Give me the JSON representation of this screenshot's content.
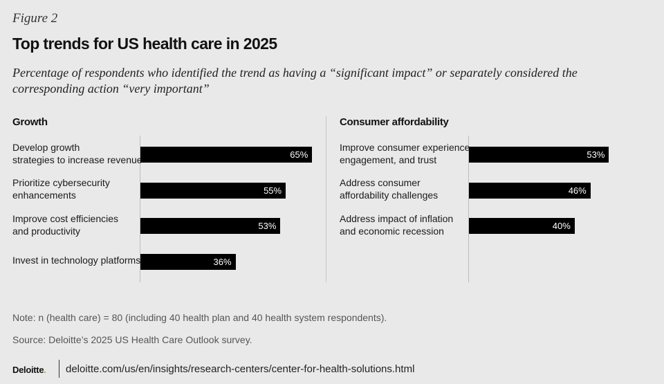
{
  "figure_label": "Figure 2",
  "title": "Top trends for US health care in 2025",
  "subtitle": "Percentage of respondents who identified the trend as having a “significant impact” or separately considered the corresponding action “very important”",
  "chart_data": [
    {
      "type": "bar",
      "orientation": "horizontal",
      "title": "Growth",
      "categories": [
        "Develop growth\nstrategies to increase revenue",
        "Prioritize cybersecurity\nenhancements",
        "Improve cost efficiencies\nand productivity",
        "Invest in technology platforms"
      ],
      "values": [
        65,
        55,
        53,
        36
      ],
      "value_labels": [
        "65%",
        "55%",
        "53%",
        "36%"
      ],
      "xlim": [
        0,
        100
      ],
      "bar_color": "#000000"
    },
    {
      "type": "bar",
      "orientation": "horizontal",
      "title": "Consumer affordability",
      "categories": [
        "Improve consumer experience,\nengagement, and trust",
        "Address consumer\naffordability challenges",
        "Address impact of inflation\nand economic recession"
      ],
      "values": [
        53,
        46,
        40
      ],
      "value_labels": [
        "53%",
        "46%",
        "40%"
      ],
      "xlim": [
        0,
        100
      ],
      "bar_color": "#000000"
    }
  ],
  "note": "Note: n (health care) = 80 (including 40 health plan and 40 health system respondents).",
  "source": "Source: Deloitte’s 2025 US Health Care Outlook survey.",
  "footer": {
    "brand": "Deloitte",
    "brand_dot": ".",
    "url": "deloitte.com/us/en/insights/research-centers/center-for-health-solutions.html"
  },
  "colors": {
    "background": "#e9e9e9",
    "bar": "#000000",
    "bar_text": "#ffffff",
    "brand_dot": "#86bc25"
  }
}
